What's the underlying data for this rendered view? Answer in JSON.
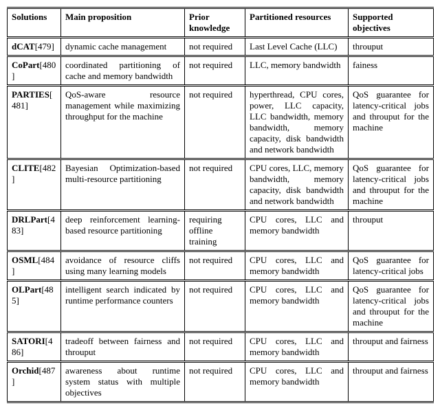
{
  "table": {
    "columns": [
      "Solutions",
      "Main proposition",
      "Prior knowledge",
      "Partitioned resources",
      "Supported objectives"
    ],
    "rows": [
      {
        "sol_name": "dCAT",
        "sol_cite": "[479]",
        "main": "dynamic cache management",
        "prior": "not required",
        "part": "Last Level Cache (LLC)",
        "obj": "throuput"
      },
      {
        "sol_name": "CoPart",
        "sol_cite": "[480]",
        "main": "coordinated partitioning of cache and memory bandwidth",
        "prior": "not required",
        "part": "LLC, memory bandwidth",
        "obj": "fainess"
      },
      {
        "sol_name": "PARTIES",
        "sol_cite": "[481]",
        "main": "QoS-aware resource management while maximizing throughput for the machine",
        "prior": "not required",
        "part": "hyperthread, CPU cores, power, LLC capacity, LLC bandwidth, memory bandwidth, memory capacity, disk bandwidth and network bandwidth",
        "obj": "QoS guarantee for latency-critical jobs and throuput for the machine"
      },
      {
        "sol_name": "CLITE",
        "sol_cite": "[482]",
        "main": "Bayesian Optimization-based multi-resource partitioning",
        "prior": "not required",
        "part": "CPU cores, LLC, memory bandwidth, memory capacity, disk bandwidth and network bandwidth",
        "obj": "QoS guarantee for latency-critical jobs and throuput for the machine"
      },
      {
        "sol_name": "DRLPart",
        "sol_cite": "[483]",
        "main": "deep reinforcement learning-based resource partitioning",
        "prior": "requiring offline training",
        "part": "CPU cores, LLC and memory bandwidth",
        "obj": "throuput"
      },
      {
        "sol_name": "OSML",
        "sol_cite": "[484]",
        "main": "avoidance of resource cliffs using many learning models",
        "prior": "not required",
        "part": "CPU cores, LLC and memory bandwidth",
        "obj": "QoS guarantee for latency-critical jobs"
      },
      {
        "sol_name": "OLPart",
        "sol_cite": "[485]",
        "main": "intelligent search indicated by runtime performance counters",
        "prior": "not required",
        "part": "CPU cores, LLC and memory bandwidth",
        "obj": "QoS guarantee for latency-critical jobs and throuput for the machine"
      },
      {
        "sol_name": "SATORI",
        "sol_cite": "[486]",
        "main": "tradeoff between fairness and throuput",
        "prior": "not required",
        "part": "CPU cores, LLC and memory bandwidth",
        "obj": "throuput and fairness"
      },
      {
        "sol_name": "Orchid",
        "sol_cite": "[487]",
        "main": "awareness about runtime system status with multiple objectives",
        "prior": "not required",
        "part": "CPU cores, LLC and memory bandwidth",
        "obj": "throuput and fairness"
      }
    ]
  }
}
